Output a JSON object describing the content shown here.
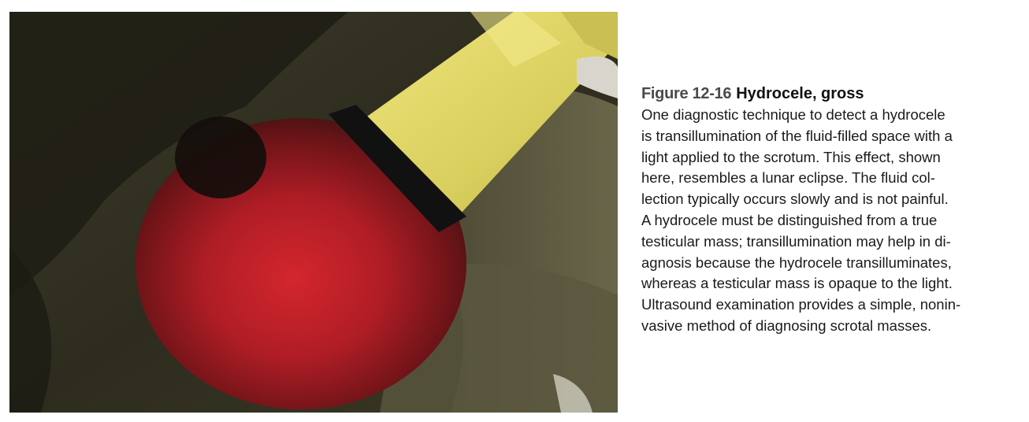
{
  "figure": {
    "label": "Figure 12-16",
    "title": "Hydrocele, gross",
    "body_lines": [
      "One diagnostic technique to detect a hydrocele",
      "is transillumination of the fluid-filled space with a",
      "light applied to the scrotum. This effect, shown",
      "here, resembles a lunar eclipse. The fluid col-",
      "lection typically occurs slowly and is not painful.",
      "A hydrocele must be distinguished from a true",
      "testicular mass; transillumination may help in di-",
      "agnosis because the hydrocele transilluminates,",
      "whereas a testicular mass is opaque to the light.",
      "Ultrasound examination provides a simple, nonin-",
      "vasive method of diagnosing scrotal masses."
    ]
  },
  "colors": {
    "background": "#ffffff",
    "glow": "#d3262e",
    "flashlight": "#e2d86a",
    "skin_dark": "#2f2d1f",
    "text": "#1a1a1a"
  }
}
